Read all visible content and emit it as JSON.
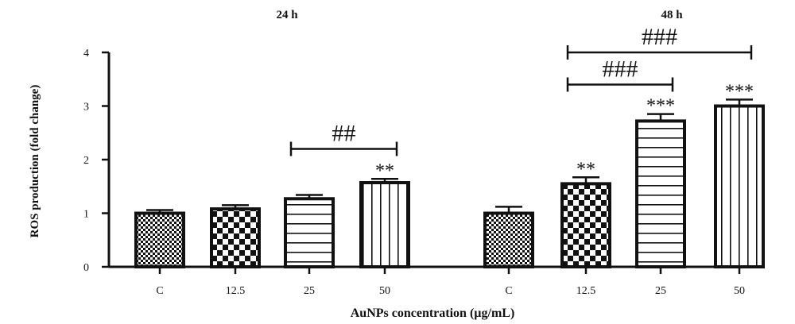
{
  "chart_data": {
    "type": "bar",
    "ylabel": "ROS production (fold change)",
    "xlabel": "AuNPs concentration (µg/mL)",
    "ylim": [
      0,
      4
    ],
    "yticks": [
      "0",
      "1",
      "2",
      "3",
      "4"
    ],
    "grid": false,
    "groups": [
      {
        "title": "24 h",
        "categories": [
          "C",
          "12.5",
          "25",
          "50"
        ],
        "values": [
          1.0,
          1.08,
          1.27,
          1.57
        ],
        "errors": [
          0.06,
          0.07,
          0.07,
          0.07
        ],
        "patterns": [
          "fine-checker",
          "checker",
          "horizontal",
          "vertical"
        ],
        "stars": [
          "",
          "",
          "",
          "**"
        ],
        "brackets": [
          {
            "from": 2,
            "to": 3,
            "level": 2.2,
            "label": "##"
          }
        ]
      },
      {
        "title": "48 h",
        "categories": [
          "C",
          "12.5",
          "25",
          "50"
        ],
        "values": [
          1.0,
          1.55,
          2.72,
          3.0
        ],
        "errors": [
          0.12,
          0.12,
          0.13,
          0.12
        ],
        "patterns": [
          "fine-checker",
          "checker",
          "horizontal",
          "vertical"
        ],
        "stars": [
          "",
          "**",
          "***",
          "***"
        ],
        "brackets": [
          {
            "from": 1,
            "to": 3,
            "level": 4.0,
            "label": "###"
          },
          {
            "from": 1,
            "to": 2,
            "level": 3.4,
            "label": "###"
          }
        ]
      }
    ]
  }
}
